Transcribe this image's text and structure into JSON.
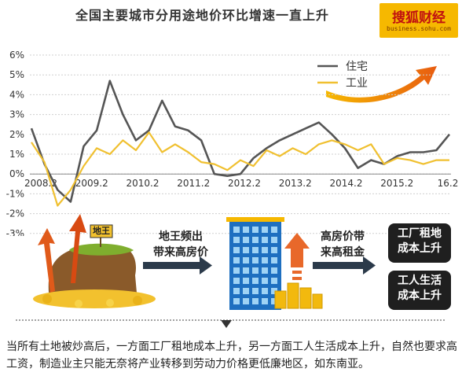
{
  "header": {
    "title": "全国主要城市分用途地价环比增速一直上升"
  },
  "brand": {
    "name": "搜狐财经",
    "url": "business.sohu.com"
  },
  "chart_data": {
    "type": "line",
    "ylim": [
      -3,
      6
    ],
    "y_ticks": [
      "6%",
      "5%",
      "4%",
      "3%",
      "2%",
      "1%",
      "0%",
      "-1%",
      "-2%",
      "-3%"
    ],
    "x_ticks": [
      "2008.2",
      "2009.2",
      "2010.2",
      "2011.2",
      "2012.2",
      "2013.2",
      "2014.2",
      "2015.2",
      "16.2"
    ],
    "legend_position": "top-right",
    "series": [
      {
        "name": "住宅",
        "color": "#555555",
        "values": [
          2.3,
          0.5,
          -0.8,
          -1.4,
          1.4,
          2.2,
          4.7,
          3.0,
          1.7,
          2.2,
          3.7,
          2.4,
          2.2,
          1.7,
          0.0,
          -0.1,
          0.0,
          0.8,
          1.3,
          1.7,
          2.0,
          2.3,
          2.6,
          2.0,
          1.3,
          0.3,
          0.7,
          0.5,
          0.9,
          1.1,
          1.1,
          1.2,
          2.0
        ]
      },
      {
        "name": "工业",
        "color": "#f0c030",
        "values": [
          1.6,
          0.6,
          -1.6,
          -0.8,
          0.4,
          1.3,
          1.0,
          1.7,
          1.2,
          2.1,
          1.1,
          1.5,
          1.1,
          0.6,
          0.5,
          0.2,
          0.7,
          0.4,
          1.2,
          0.9,
          1.3,
          1.0,
          1.5,
          1.7,
          1.5,
          1.2,
          1.5,
          0.5,
          0.8,
          0.7,
          0.5,
          0.7,
          0.7
        ]
      }
    ]
  },
  "flow": {
    "step1_line1": "地王频出",
    "step1_line2": "带来高房价",
    "land_sign": "地王",
    "step2_line1": "高房价带",
    "step2_line2": "来高租金",
    "box1_line1": "工厂租地",
    "box1_line2": "成本上升",
    "box2_line1": "工人生活",
    "box2_line2": "成本上升"
  },
  "footer": {
    "text": "当所有土地被炒高后，一方面工厂租地成本上升，另一方面工人生活成本上升，自然也要求高工资，制造业主只能无奈将产业转移到劳动力价格更低廉地区，如东南亚。"
  }
}
